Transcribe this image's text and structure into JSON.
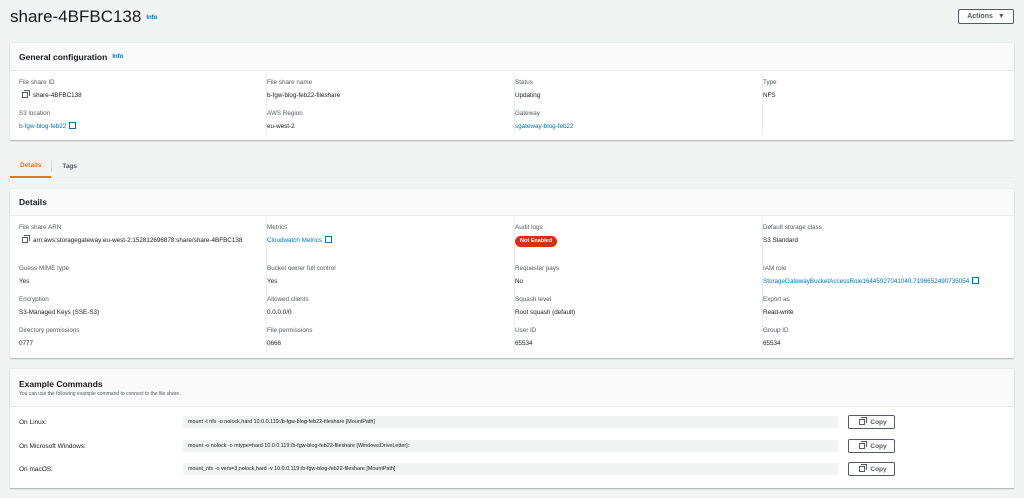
{
  "header": {
    "title": "share-4BFBC138",
    "info": "Info",
    "actions": "Actions"
  },
  "general": {
    "title": "General configuration",
    "info": "Info",
    "fields": [
      {
        "label": "File share ID",
        "value": "share-4BFBC138"
      },
      {
        "label": "File share name",
        "value": "b-fgw-blog-feb22-fileshare"
      },
      {
        "label": "Status",
        "value": "Updating"
      },
      {
        "label": "Type",
        "value": "NFS"
      },
      {
        "label": "S3 location",
        "value": "b-fgw-blog-feb22"
      },
      {
        "label": "AWS Region",
        "value": "eu-west-2"
      },
      {
        "label": "Gateway",
        "value": "sgateway-blog-feb22"
      }
    ]
  },
  "tabs": [
    {
      "label": "Details",
      "active": true
    },
    {
      "label": "Tags"
    }
  ],
  "details": {
    "title": "Details",
    "fields": [
      {
        "label": "File share ARN",
        "value": "arn:aws:storagegateway:eu-west-2:152812696878:share/share-4BFBC138"
      },
      {
        "label": "Metrics",
        "value": "Cloudwatch Metrics"
      },
      {
        "label": "Audit logs",
        "value": "Not Enabled"
      },
      {
        "label": "Default storage class",
        "value": "S3 Standard"
      },
      {
        "label": "Guess MIME type",
        "value": "Yes"
      },
      {
        "label": "Bucket owner full control",
        "value": "Yes"
      },
      {
        "label": "Requester pays",
        "value": "No"
      },
      {
        "label": "IAM role",
        "value": "StorageGatewayBucketAccessRole16445927041040.7196652490735054"
      },
      {
        "label": "Encryption",
        "value": "S3-Managed Keys (SSE-S3)"
      },
      {
        "label": "Allowed clients",
        "value": "0.0.0.0/0"
      },
      {
        "label": "Squash level",
        "value": "Root squash (default)"
      },
      {
        "label": "Export as",
        "value": "Read-write"
      },
      {
        "label": "Directory permissions",
        "value": "0777"
      },
      {
        "label": "File permissions",
        "value": "0666"
      },
      {
        "label": "User ID",
        "value": "65534"
      },
      {
        "label": "Group ID",
        "value": "65534"
      }
    ]
  },
  "commands": {
    "title": "Example Commands",
    "description": "You can use the following example command to connect to the file share.",
    "copy_label": "Copy",
    "rows": [
      {
        "label": "On Linux:",
        "command": "mount -t nfs -o nolock,hard 10.0.0.119:/b-fgw-blog-feb22-fileshare [MountPath]"
      },
      {
        "label": "On Microsoft Windows:",
        "command": "mount -o nolock -o mtype=hard 10.0.0.119:/b-fgw-blog-feb22-fileshare [WindowsDriveLetter]:"
      },
      {
        "label": "On macOS:",
        "command": "mount_nfs -o vers=3,nolock,hard -v 10.0.0.119:/b-fgw-blog-feb22-fileshare [MountPath]"
      }
    ]
  },
  "colors": {
    "link": "#0073bb",
    "accent": "#ec7211",
    "badge": "#d13212"
  }
}
